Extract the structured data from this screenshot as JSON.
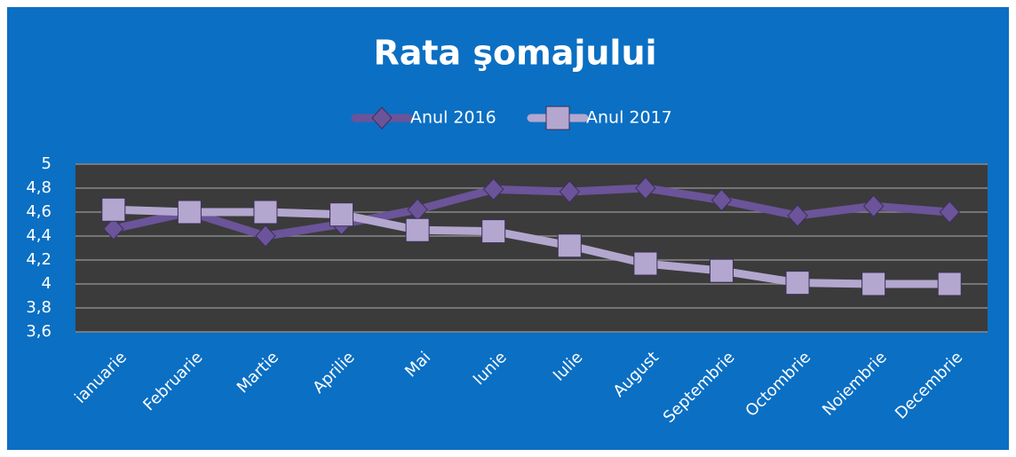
{
  "chart_data": {
    "type": "line",
    "title": "Rata şomajului",
    "categories": [
      "ianuarie",
      "Februarie",
      "Martie",
      "Aprilie",
      "Mai",
      "Iunie",
      "Iulie",
      "August",
      "Septembrie",
      "Octombrie",
      "Noiembrie",
      "Decembrie"
    ],
    "series": [
      {
        "name": "Anul 2016",
        "color": "#6b5499",
        "marker": "diamond",
        "values": [
          4.46,
          4.6,
          4.4,
          4.5,
          4.62,
          4.79,
          4.77,
          4.8,
          4.7,
          4.57,
          4.65,
          4.6
        ]
      },
      {
        "name": "Anul 2017",
        "color": "#b3a7cf",
        "marker": "square",
        "values": [
          4.62,
          4.6,
          4.6,
          4.58,
          4.45,
          4.44,
          4.32,
          4.17,
          4.11,
          4.01,
          4.0,
          4.0
        ]
      }
    ],
    "ylim": [
      3.6,
      5
    ],
    "yticks": [
      {
        "value": 3.6,
        "label": "3,6"
      },
      {
        "value": 3.8,
        "label": "3,8"
      },
      4,
      {
        "value": 4.2,
        "label": "4,2"
      },
      {
        "value": 4.4,
        "label": "4,4"
      },
      {
        "value": 4.6,
        "label": "4,6"
      },
      {
        "value": 4.8,
        "label": "4,8"
      },
      5
    ],
    "grid": true,
    "legend": "top"
  }
}
